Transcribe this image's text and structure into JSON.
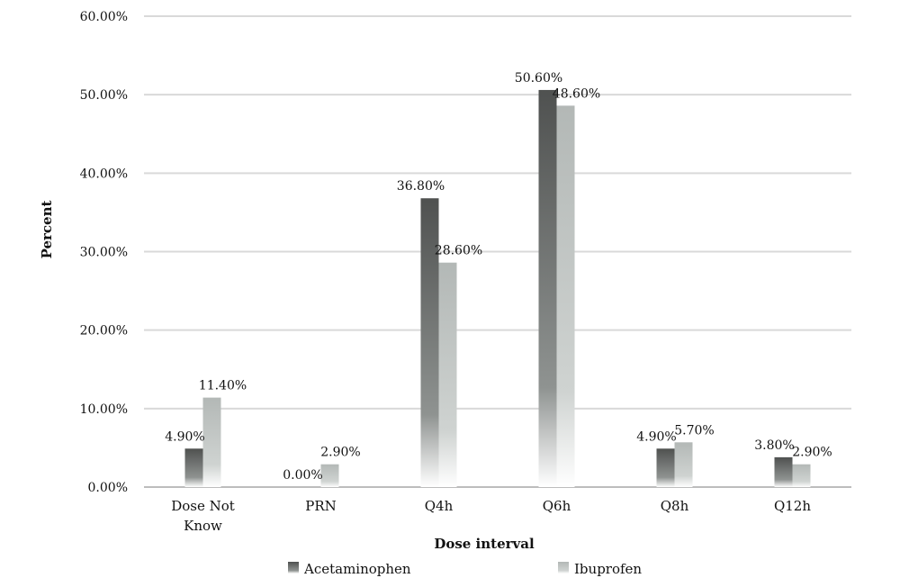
{
  "chart_data": {
    "type": "bar",
    "xlabel": "Dose interval",
    "ylabel": "Percent",
    "categories": [
      [
        "Dose Not",
        "Know"
      ],
      [
        "PRN"
      ],
      [
        "Q4h"
      ],
      [
        "Q6h"
      ],
      [
        "Q8h"
      ],
      [
        "Q12h"
      ]
    ],
    "series": [
      {
        "name": "Acetaminophen",
        "values": [
          4.9,
          0.0,
          36.8,
          50.6,
          4.9,
          3.8
        ],
        "labels": [
          "4.90%",
          "0.00%",
          "36.80%",
          "50.60%",
          "4.90%",
          "3.80%"
        ],
        "color": "#555555"
      },
      {
        "name": "Ibuprofen",
        "values": [
          11.4,
          2.9,
          28.6,
          48.6,
          5.7,
          2.9
        ],
        "labels": [
          "11.40%",
          "2.90%",
          "28.60%",
          "48.60%",
          "5.70%",
          "2.90%"
        ],
        "color": "#b8bdbb"
      }
    ],
    "ylim": [
      0,
      60
    ],
    "yticks": [
      "0.00%",
      "10.00%",
      "20.00%",
      "30.00%",
      "40.00%",
      "50.00%",
      "60.00%"
    ],
    "grid": true,
    "legend": "bottom"
  }
}
